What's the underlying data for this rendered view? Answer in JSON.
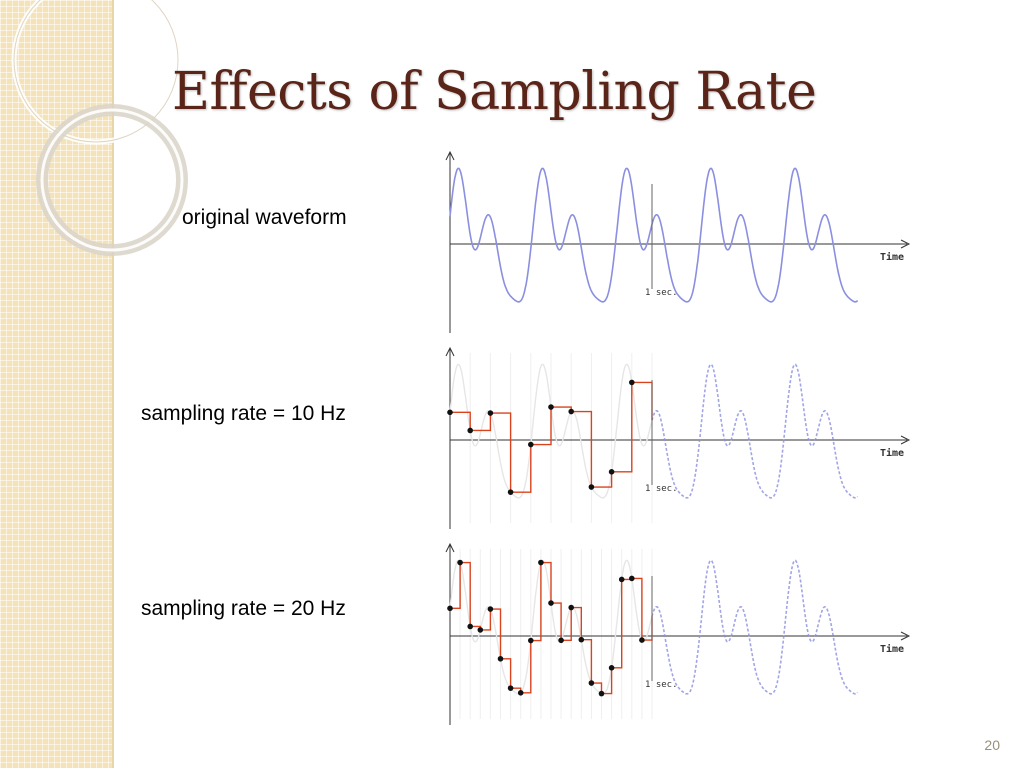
{
  "slide": {
    "title": "Effects of Sampling Rate",
    "page_number": "20"
  },
  "colors": {
    "title": "#5a2418",
    "waveform": "#8a8fe0",
    "samples": "#d9431e",
    "sidebar": "#f4e3b8"
  },
  "panels": [
    {
      "id": "original",
      "label": "original waveform",
      "sample_rate_hz": 0
    },
    {
      "id": "rate10",
      "label": "sampling rate = 10 Hz",
      "sample_rate_hz": 10
    },
    {
      "id": "rate20",
      "label": "sampling rate = 20 Hz",
      "sample_rate_hz": 20
    }
  ],
  "axis": {
    "time_label": "Time",
    "marker_label": "1 sec."
  }
}
